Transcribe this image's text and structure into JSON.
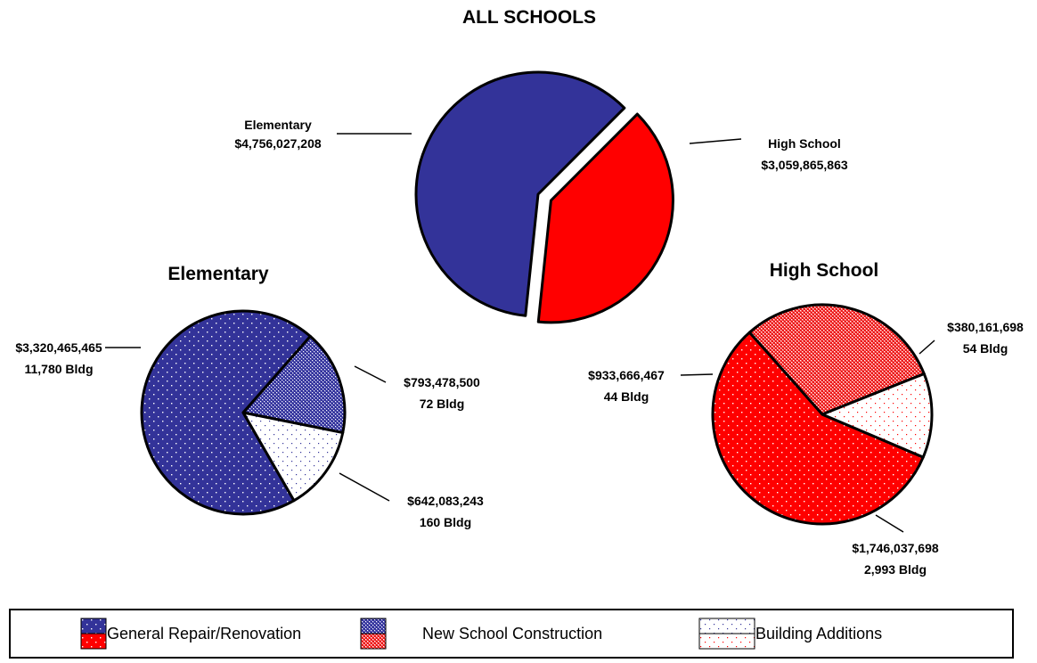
{
  "chart_data": [
    {
      "type": "pie",
      "title": "ALL SCHOOLS",
      "slices": [
        {
          "label": "Elementary",
          "value": 4756027208,
          "value_text": "$4,756,027,208",
          "color": "#333399",
          "pattern": "solid"
        },
        {
          "label": "High School",
          "value": 3059865863,
          "value_text": "$3,059,865,863",
          "color": "#ff0000",
          "pattern": "solid",
          "exploded": true
        }
      ]
    },
    {
      "type": "pie",
      "title": "Elementary",
      "slices": [
        {
          "category": "General Repair/Renovation",
          "value": 3320465465,
          "value_text": "$3,320,465,465",
          "buildings": "11,780 Bldg",
          "color": "#333399",
          "pattern": "dots"
        },
        {
          "category": "New School Construction",
          "value": 793478500,
          "value_text": "$793,478,500",
          "buildings": "72 Bldg",
          "color": "#333399",
          "pattern": "checker"
        },
        {
          "category": "Building Additions",
          "value": 642083243,
          "value_text": "$642,083,243",
          "buildings": "160 Bldg",
          "color": "#333399",
          "pattern": "sparse"
        }
      ]
    },
    {
      "type": "pie",
      "title": "High School",
      "slices": [
        {
          "category": "General Repair/Renovation",
          "value": 1746037698,
          "value_text": "$1,746,037,698",
          "buildings": "2,993 Bldg",
          "color": "#ff0000",
          "pattern": "dots"
        },
        {
          "category": "New School Construction",
          "value": 933666467,
          "value_text": "$933,666,467",
          "buildings": "44 Bldg",
          "color": "#ff0000",
          "pattern": "checker"
        },
        {
          "category": "Building Additions",
          "value": 380161698,
          "value_text": "$380,161,698",
          "buildings": "54 Bldg",
          "color": "#ff0000",
          "pattern": "sparse"
        }
      ]
    }
  ],
  "legend": {
    "items": [
      {
        "label": "General Repair/Renovation",
        "pattern": "dots"
      },
      {
        "label": "New School Construction",
        "pattern": "checker"
      },
      {
        "label": "Building Additions",
        "pattern": "sparse"
      }
    ]
  },
  "colors": {
    "elementary": "#333399",
    "high_school": "#ff0000",
    "outline": "#000000"
  }
}
